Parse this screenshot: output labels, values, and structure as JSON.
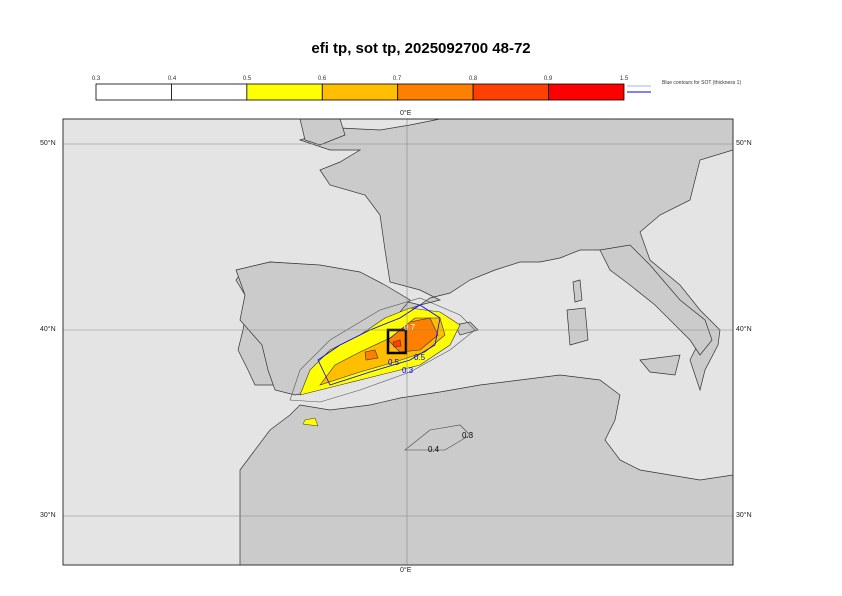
{
  "title": "efi tp, sot tp, 2025092700 48-72",
  "colorbar": {
    "ticks": [
      "0.3",
      "0.4",
      "0.5",
      "0.6",
      "0.7",
      "0.8",
      "0.9",
      "1.5"
    ],
    "colors": [
      "#ffffff",
      "#ffffff",
      "#ffff00",
      "#ffbf00",
      "#ff8000",
      "#ff4000",
      "#ff0000"
    ],
    "legend_note": "Blue contours for SOT (thickness 1)",
    "sot_line_colors": [
      "#aab0ff",
      "#0000ff"
    ]
  },
  "map": {
    "lon_label_top": "0°E",
    "lon_label_bottom": "0°E",
    "lat_labels_left": [
      "50°N",
      "40°N",
      "30°N"
    ],
    "lat_labels_right": [
      "50°N",
      "40°N",
      "30°N"
    ],
    "contour_labels": [
      "0.7",
      "0.5",
      "0.3",
      "0.5",
      "0.3",
      "0.4"
    ],
    "sea_color": "#e4e4e4",
    "land_color": "#cbcbcb",
    "sot_contour_color": "#0000ff"
  }
}
